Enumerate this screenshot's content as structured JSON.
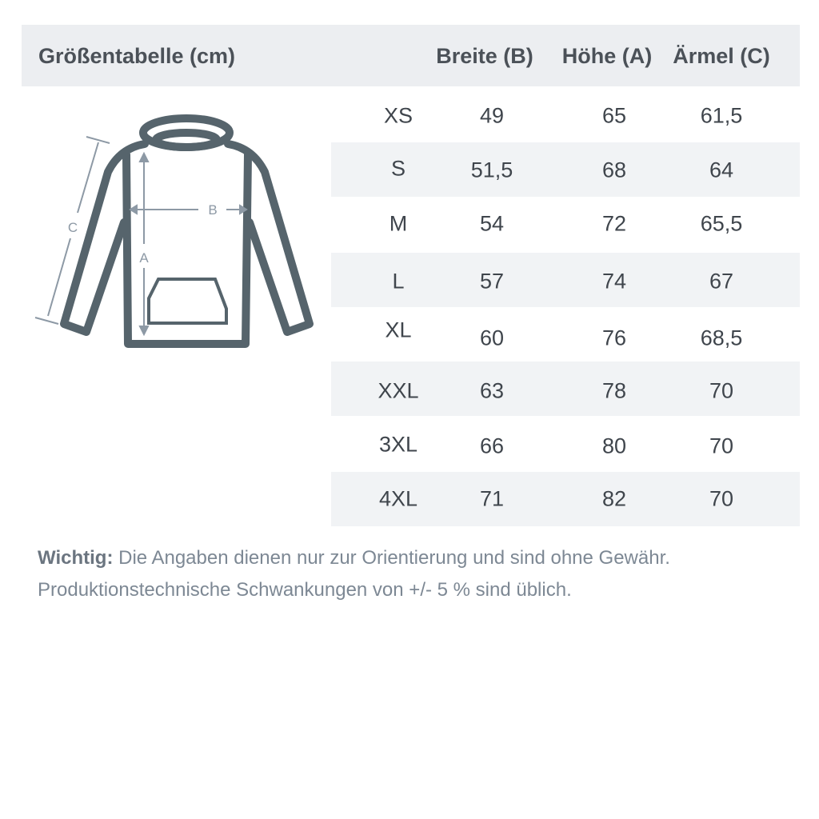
{
  "header": {
    "title": "Größentabelle (cm)",
    "columns": [
      "Breite (B)",
      "Höhe (A)",
      "Ärmel (C)"
    ]
  },
  "diagram": {
    "labels": {
      "a": "A",
      "b": "B",
      "c": "C"
    },
    "icon": "hoodie-measurement-diagram",
    "colors": {
      "outline": "#56646c",
      "arrows": "#8d99a5"
    }
  },
  "rows": [
    {
      "size": "XS",
      "b": "49",
      "a": "65",
      "c": "61,5"
    },
    {
      "size": "S",
      "b": "51,5",
      "a": "68",
      "c": "64"
    },
    {
      "size": "M",
      "b": "54",
      "a": "72",
      "c": "65,5"
    },
    {
      "size": "L",
      "b": "57",
      "a": "74",
      "c": "67"
    },
    {
      "size": "XL",
      "b": "60",
      "a": "76",
      "c": "68,5"
    },
    {
      "size": "XXL",
      "b": "63",
      "a": "78",
      "c": "70"
    },
    {
      "size": "3XL",
      "b": "66",
      "a": "80",
      "c": "70"
    },
    {
      "size": "4XL",
      "b": "71",
      "a": "82",
      "c": "70"
    }
  ],
  "note": {
    "label": "Wichtig:",
    "line1": "Die Angaben dienen nur zur Orientierung und sind ohne Gewähr.",
    "line2": "Produktionstechnische Schwankungen von +/- 5 % sind üblich."
  }
}
